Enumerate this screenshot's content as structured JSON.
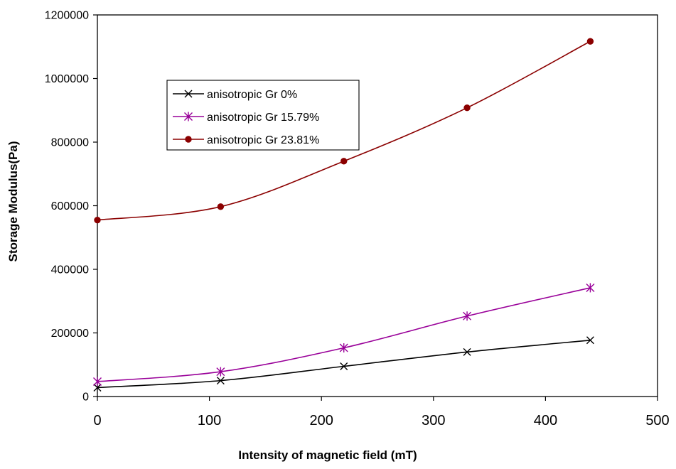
{
  "chart_data": {
    "type": "line",
    "title": "",
    "xlabel": "Intensity of magnetic field (mT)",
    "ylabel": "Storage Modulus(Pa)",
    "xlim": [
      0,
      500
    ],
    "ylim": [
      0,
      1200000
    ],
    "x_ticks": [
      "0",
      "100",
      "200",
      "300",
      "400",
      "500"
    ],
    "y_ticks": [
      "0",
      "200000",
      "400000",
      "600000",
      "800000",
      "1000000",
      "1200000"
    ],
    "grid": false,
    "legend_position": "upper-left-inside",
    "x": [
      0,
      110,
      220,
      330,
      440
    ],
    "series": [
      {
        "name": "anisotropic Gr 0%",
        "values": [
          28000,
          50000,
          95000,
          140000,
          177000
        ],
        "color": "#000000",
        "marker": "x"
      },
      {
        "name": "anisotropic Gr 15.79%",
        "values": [
          47000,
          78000,
          153000,
          253000,
          342000
        ],
        "color": "#990099",
        "marker": "asterisk"
      },
      {
        "name": "anisotropic Gr 23.81%",
        "values": [
          555000,
          597000,
          740000,
          908000,
          1117000
        ],
        "color": "#8b0000",
        "marker": "circle"
      }
    ]
  }
}
